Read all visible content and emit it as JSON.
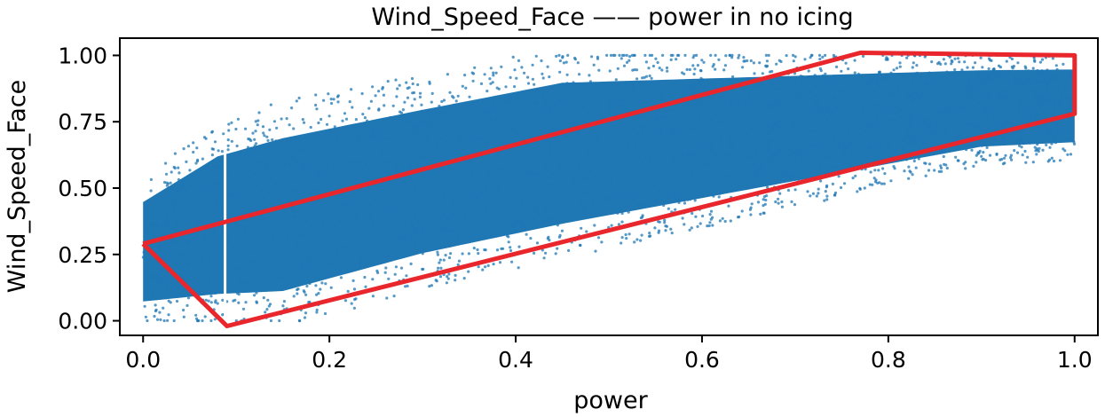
{
  "chart_data": {
    "type": "scatter",
    "title": "Wind_Speed_Face —— power in no icing",
    "xlabel": "power",
    "ylabel": "Wind_Speed_Face",
    "xlim": [
      -0.025,
      1.025
    ],
    "ylim": [
      -0.055,
      1.065
    ],
    "x_ticks": [
      0.0,
      0.2,
      0.4,
      0.6,
      0.8,
      1.0
    ],
    "x_tick_labels": [
      "0.0",
      "0.2",
      "0.4",
      "0.6",
      "0.8",
      "1.0"
    ],
    "y_ticks": [
      0.0,
      0.25,
      0.5,
      0.75,
      1.0
    ],
    "y_tick_labels": [
      "0.00",
      "0.25",
      "0.50",
      "0.75",
      "1.00"
    ],
    "grid": false,
    "legend": "none",
    "point_color": "#1f77b4",
    "scatter_envelope": {
      "upper": [
        [
          0.0,
          0.52
        ],
        [
          0.08,
          0.72
        ],
        [
          0.15,
          0.8
        ],
        [
          0.3,
          0.9
        ],
        [
          0.45,
          1.0
        ],
        [
          1.0,
          1.0
        ]
      ],
      "lower": [
        [
          0.0,
          0.0
        ],
        [
          0.15,
          0.0
        ],
        [
          0.3,
          0.15
        ],
        [
          0.5,
          0.3
        ],
        [
          0.7,
          0.45
        ],
        [
          0.9,
          0.6
        ],
        [
          1.0,
          0.62
        ]
      ]
    },
    "annotation_polygon": {
      "color": "#e8262b",
      "points": [
        [
          0.0,
          0.29
        ],
        [
          0.09,
          -0.02
        ],
        [
          1.0,
          0.78
        ],
        [
          1.0,
          1.0
        ],
        [
          0.77,
          1.01
        ],
        [
          0.0,
          0.29
        ]
      ]
    }
  }
}
